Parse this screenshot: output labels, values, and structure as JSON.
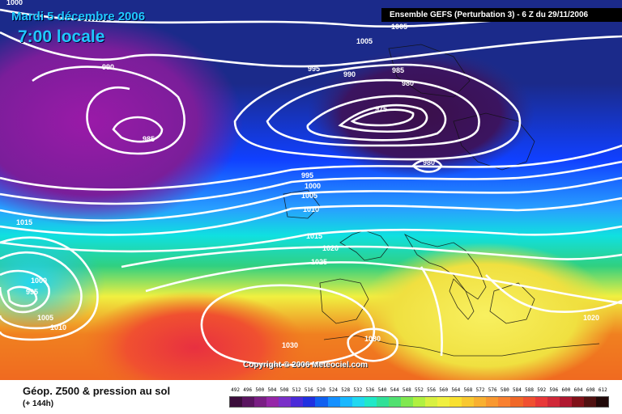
{
  "header": {
    "date": "Mardi 5 décembre 2006",
    "time": "7:00 locale",
    "run_info": "Ensemble GEFS (Perturbation 3)  -  6 Z du 29/11/2006"
  },
  "copyright": "Copyright © 2006 Meteociel.com",
  "footer": {
    "product_title": "Géop. Z500 & pression au sol",
    "lead_time": "(+ 144h)"
  },
  "isobar_labels": [
    "1000",
    "995",
    "990",
    "985",
    "975",
    "980",
    "1005",
    "990",
    "985",
    "995",
    "1000",
    "1005",
    "1010",
    "1015",
    "1020",
    "1025",
    "1015",
    "1000",
    "995",
    "1005",
    "1010",
    "1030",
    "1030",
    "1020",
    "980",
    "1005"
  ],
  "colors": {
    "purple": "#9a1aa8",
    "dark_maroon": "#3b0f4a",
    "navy": "#1b2a8a",
    "blue": "#1040ff",
    "light_blue": "#28a0ff",
    "cyan": "#10e0e0",
    "green": "#30d080",
    "yellow": "#f0f040",
    "orange": "#f08020",
    "red_orange": "#f05030",
    "red": "#e83040",
    "contour": "#ffffff"
  },
  "legend": {
    "values": [
      "492",
      "496",
      "500",
      "504",
      "508",
      "512",
      "516",
      "520",
      "524",
      "528",
      "532",
      "536",
      "540",
      "544",
      "548",
      "552",
      "556",
      "560",
      "564",
      "568",
      "572",
      "576",
      "580",
      "584",
      "588",
      "592",
      "596",
      "600",
      "604",
      "608",
      "612"
    ],
    "colors": [
      "#3c0d3c",
      "#5a1460",
      "#7a1e84",
      "#9626a8",
      "#7a30c8",
      "#4a2ad8",
      "#2030e0",
      "#1060f0",
      "#1490ff",
      "#18b8ff",
      "#20d8f0",
      "#20e8c8",
      "#30e098",
      "#50e070",
      "#80e850",
      "#b0f040",
      "#d8f040",
      "#f0f040",
      "#f8e030",
      "#f8c830",
      "#f8b030",
      "#f89830",
      "#f88030",
      "#f06828",
      "#f05030",
      "#e83838",
      "#d02838",
      "#b01830",
      "#801018",
      "#501010",
      "#200808"
    ]
  }
}
